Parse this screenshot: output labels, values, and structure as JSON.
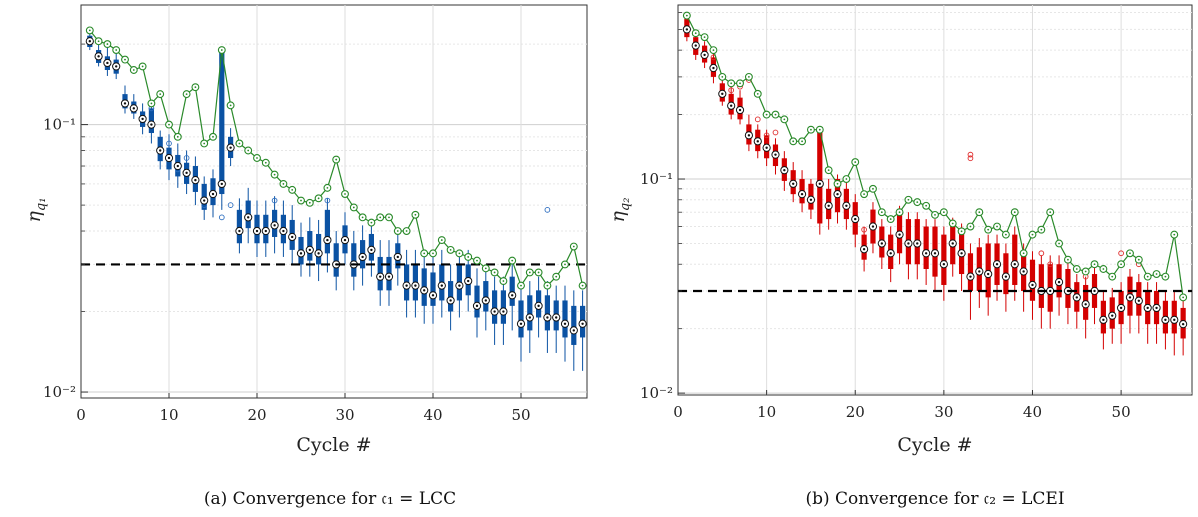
{
  "figure": {
    "captions": [
      "(a) Convergence for 𝔠₁ = LCC",
      "(b) Convergence for 𝔠₂ = LCEI"
    ]
  },
  "chart_data": [
    {
      "type": "box",
      "title": "",
      "xlabel": "Cycle #",
      "ylabel": "η_{q1}",
      "ylabel_main": "η",
      "ylabel_sub": "q₁",
      "x_ticks": [
        0,
        10,
        20,
        30,
        40,
        50
      ],
      "y_ticks": [
        "10⁻²",
        "10⁻¹"
      ],
      "y_tick_values": [
        0.01,
        0.1
      ],
      "xlim": [
        0,
        57.5
      ],
      "ylim": [
        0.0095,
        0.28
      ],
      "yscale": "log",
      "grid": true,
      "colors": {
        "box": "#0b52a3",
        "max_line": "#2a8a2a",
        "threshold": "#000000",
        "outlier": "#2f6fc0"
      },
      "threshold": 0.03,
      "cycles": [
        1,
        2,
        3,
        4,
        5,
        6,
        7,
        8,
        9,
        10,
        11,
        12,
        13,
        14,
        15,
        16,
        17,
        18,
        19,
        20,
        21,
        22,
        23,
        24,
        25,
        26,
        27,
        28,
        29,
        30,
        31,
        32,
        33,
        34,
        35,
        36,
        37,
        38,
        39,
        40,
        41,
        42,
        43,
        44,
        45,
        46,
        47,
        48,
        49,
        50,
        51,
        52,
        53,
        54,
        55,
        56,
        57
      ],
      "max": [
        0.225,
        0.205,
        0.2,
        0.19,
        0.175,
        0.16,
        0.165,
        0.12,
        0.13,
        0.1,
        0.09,
        0.13,
        0.138,
        0.085,
        0.09,
        0.19,
        0.118,
        0.085,
        0.08,
        0.075,
        0.072,
        0.065,
        0.06,
        0.057,
        0.052,
        0.051,
        0.053,
        0.058,
        0.074,
        0.055,
        0.049,
        0.045,
        0.043,
        0.045,
        0.045,
        0.04,
        0.04,
        0.046,
        0.033,
        0.033,
        0.037,
        0.034,
        0.033,
        0.032,
        0.031,
        0.029,
        0.028,
        0.026,
        0.031,
        0.025,
        0.028,
        0.028,
        0.025,
        0.027,
        0.03,
        0.035,
        0.025
      ],
      "median": [
        0.205,
        0.18,
        0.17,
        0.165,
        0.12,
        0.115,
        0.105,
        0.1,
        0.08,
        0.075,
        0.07,
        0.066,
        0.062,
        0.052,
        0.055,
        0.06,
        0.082,
        0.04,
        0.045,
        0.04,
        0.04,
        0.042,
        0.04,
        0.038,
        0.033,
        0.034,
        0.033,
        0.037,
        0.03,
        0.037,
        0.03,
        0.032,
        0.034,
        0.027,
        0.027,
        0.032,
        0.025,
        0.025,
        0.024,
        0.023,
        0.025,
        0.022,
        0.025,
        0.026,
        0.021,
        0.022,
        0.02,
        0.02,
        0.023,
        0.018,
        0.019,
        0.021,
        0.019,
        0.019,
        0.018,
        0.017,
        0.018
      ],
      "q1": [
        0.195,
        0.17,
        0.16,
        0.155,
        0.115,
        0.11,
        0.098,
        0.093,
        0.073,
        0.068,
        0.064,
        0.06,
        0.056,
        0.048,
        0.05,
        0.055,
        0.075,
        0.036,
        0.041,
        0.036,
        0.036,
        0.038,
        0.036,
        0.034,
        0.03,
        0.031,
        0.03,
        0.033,
        0.027,
        0.033,
        0.027,
        0.029,
        0.031,
        0.024,
        0.024,
        0.029,
        0.022,
        0.022,
        0.021,
        0.021,
        0.022,
        0.02,
        0.022,
        0.023,
        0.019,
        0.02,
        0.018,
        0.018,
        0.021,
        0.016,
        0.017,
        0.019,
        0.017,
        0.017,
        0.016,
        0.015,
        0.016
      ],
      "q3": [
        0.215,
        0.19,
        0.18,
        0.175,
        0.13,
        0.122,
        0.112,
        0.115,
        0.09,
        0.082,
        0.077,
        0.072,
        0.07,
        0.06,
        0.063,
        0.19,
        0.09,
        0.048,
        0.052,
        0.046,
        0.046,
        0.048,
        0.046,
        0.044,
        0.038,
        0.04,
        0.039,
        0.048,
        0.036,
        0.042,
        0.036,
        0.037,
        0.039,
        0.032,
        0.032,
        0.036,
        0.03,
        0.03,
        0.029,
        0.028,
        0.03,
        0.026,
        0.03,
        0.03,
        0.025,
        0.026,
        0.024,
        0.024,
        0.027,
        0.022,
        0.023,
        0.024,
        0.023,
        0.022,
        0.022,
        0.021,
        0.021
      ],
      "low": [
        0.19,
        0.165,
        0.152,
        0.148,
        0.11,
        0.105,
        0.092,
        0.085,
        0.068,
        0.062,
        0.058,
        0.055,
        0.05,
        0.044,
        0.045,
        0.048,
        0.07,
        0.033,
        0.036,
        0.032,
        0.032,
        0.033,
        0.032,
        0.03,
        0.027,
        0.027,
        0.026,
        0.028,
        0.024,
        0.03,
        0.024,
        0.025,
        0.027,
        0.021,
        0.021,
        0.025,
        0.019,
        0.019,
        0.018,
        0.018,
        0.019,
        0.017,
        0.019,
        0.02,
        0.016,
        0.017,
        0.015,
        0.015,
        0.017,
        0.013,
        0.014,
        0.016,
        0.014,
        0.014,
        0.013,
        0.012,
        0.012
      ],
      "high": [
        0.222,
        0.2,
        0.195,
        0.185,
        0.14,
        0.13,
        0.12,
        0.122,
        0.095,
        0.092,
        0.085,
        0.08,
        0.076,
        0.064,
        0.068,
        0.19,
        0.097,
        0.053,
        0.058,
        0.052,
        0.052,
        0.054,
        0.052,
        0.05,
        0.043,
        0.045,
        0.044,
        0.053,
        0.04,
        0.047,
        0.04,
        0.042,
        0.044,
        0.037,
        0.037,
        0.04,
        0.034,
        0.034,
        0.033,
        0.032,
        0.034,
        0.03,
        0.033,
        0.034,
        0.029,
        0.03,
        0.027,
        0.027,
        0.03,
        0.025,
        0.026,
        0.027,
        0.026,
        0.025,
        0.025,
        0.024,
        0.024
      ],
      "outliers": [
        [
          8,
          0.115
        ],
        [
          10,
          0.085
        ],
        [
          11,
          0.068
        ],
        [
          12,
          0.075
        ],
        [
          14,
          0.05
        ],
        [
          16,
          0.045
        ],
        [
          17,
          0.05
        ],
        [
          22,
          0.052
        ],
        [
          28,
          0.052
        ],
        [
          53,
          0.048
        ]
      ]
    },
    {
      "type": "box",
      "title": "",
      "xlabel": "Cycle #",
      "ylabel": "η_{q2}",
      "ylabel_main": "η",
      "ylabel_sub": "q₂",
      "x_ticks": [
        0,
        10,
        20,
        30,
        40,
        50
      ],
      "y_ticks": [
        "10⁻²",
        "10⁻¹"
      ],
      "y_tick_values": [
        0.01,
        0.1
      ],
      "xlim": [
        0,
        58
      ],
      "ylim": [
        0.0098,
        0.65
      ],
      "yscale": "log",
      "grid": true,
      "colors": {
        "box": "#d40000",
        "max_line": "#2a8a2a",
        "threshold": "#000000",
        "outlier": "#e03030"
      },
      "threshold": 0.03,
      "cycles": [
        1,
        2,
        3,
        4,
        5,
        6,
        7,
        8,
        9,
        10,
        11,
        12,
        13,
        14,
        15,
        16,
        17,
        18,
        19,
        20,
        21,
        22,
        23,
        24,
        25,
        26,
        27,
        28,
        29,
        30,
        31,
        32,
        33,
        34,
        35,
        36,
        37,
        38,
        39,
        40,
        41,
        42,
        43,
        44,
        45,
        46,
        47,
        48,
        49,
        50,
        51,
        52,
        53,
        54,
        55,
        56,
        57
      ],
      "max": [
        0.58,
        0.48,
        0.46,
        0.4,
        0.3,
        0.28,
        0.28,
        0.3,
        0.25,
        0.2,
        0.2,
        0.19,
        0.15,
        0.15,
        0.17,
        0.17,
        0.11,
        0.095,
        0.1,
        0.12,
        0.085,
        0.09,
        0.07,
        0.065,
        0.07,
        0.08,
        0.078,
        0.075,
        0.068,
        0.07,
        0.062,
        0.057,
        0.06,
        0.07,
        0.058,
        0.06,
        0.055,
        0.07,
        0.045,
        0.055,
        0.058,
        0.07,
        0.05,
        0.042,
        0.038,
        0.037,
        0.04,
        0.038,
        0.035,
        0.04,
        0.045,
        0.042,
        0.035,
        0.036,
        0.035,
        0.055,
        0.028
      ],
      "median": [
        0.5,
        0.42,
        0.38,
        0.33,
        0.25,
        0.22,
        0.21,
        0.16,
        0.15,
        0.14,
        0.13,
        0.11,
        0.095,
        0.085,
        0.08,
        0.095,
        0.075,
        0.085,
        0.075,
        0.065,
        0.047,
        0.06,
        0.05,
        0.045,
        0.055,
        0.05,
        0.05,
        0.045,
        0.045,
        0.04,
        0.05,
        0.045,
        0.035,
        0.037,
        0.036,
        0.04,
        0.035,
        0.04,
        0.037,
        0.032,
        0.03,
        0.03,
        0.033,
        0.03,
        0.028,
        0.026,
        0.03,
        0.022,
        0.023,
        0.025,
        0.028,
        0.027,
        0.025,
        0.025,
        0.022,
        0.022,
        0.021
      ],
      "q1": [
        0.46,
        0.38,
        0.35,
        0.3,
        0.23,
        0.2,
        0.19,
        0.145,
        0.135,
        0.125,
        0.115,
        0.098,
        0.085,
        0.077,
        0.072,
        0.062,
        0.065,
        0.07,
        0.065,
        0.055,
        0.042,
        0.05,
        0.043,
        0.038,
        0.045,
        0.04,
        0.04,
        0.038,
        0.035,
        0.032,
        0.04,
        0.036,
        0.03,
        0.03,
        0.028,
        0.032,
        0.029,
        0.032,
        0.03,
        0.027,
        0.025,
        0.024,
        0.028,
        0.025,
        0.024,
        0.022,
        0.025,
        0.019,
        0.02,
        0.021,
        0.023,
        0.023,
        0.021,
        0.021,
        0.019,
        0.019,
        0.018
      ],
      "q3": [
        0.56,
        0.46,
        0.42,
        0.37,
        0.28,
        0.25,
        0.24,
        0.18,
        0.17,
        0.16,
        0.145,
        0.125,
        0.11,
        0.1,
        0.095,
        0.17,
        0.09,
        0.1,
        0.09,
        0.078,
        0.055,
        0.072,
        0.06,
        0.055,
        0.07,
        0.065,
        0.065,
        0.06,
        0.06,
        0.055,
        0.062,
        0.058,
        0.045,
        0.048,
        0.05,
        0.05,
        0.045,
        0.055,
        0.045,
        0.042,
        0.04,
        0.04,
        0.04,
        0.038,
        0.033,
        0.032,
        0.036,
        0.027,
        0.028,
        0.03,
        0.035,
        0.033,
        0.03,
        0.03,
        0.027,
        0.027,
        0.025
      ],
      "low": [
        0.44,
        0.36,
        0.33,
        0.28,
        0.22,
        0.19,
        0.18,
        0.135,
        0.125,
        0.115,
        0.105,
        0.088,
        0.078,
        0.07,
        0.065,
        0.055,
        0.058,
        0.062,
        0.058,
        0.048,
        0.037,
        0.045,
        0.038,
        0.033,
        0.04,
        0.034,
        0.034,
        0.032,
        0.03,
        0.027,
        0.035,
        0.03,
        0.022,
        0.025,
        0.023,
        0.027,
        0.024,
        0.027,
        0.024,
        0.022,
        0.02,
        0.02,
        0.023,
        0.021,
        0.02,
        0.018,
        0.021,
        0.016,
        0.017,
        0.017,
        0.019,
        0.019,
        0.017,
        0.017,
        0.016,
        0.015,
        0.015
      ],
      "high": [
        0.58,
        0.48,
        0.44,
        0.39,
        0.3,
        0.27,
        0.26,
        0.2,
        0.18,
        0.17,
        0.155,
        0.135,
        0.12,
        0.11,
        0.1,
        0.17,
        0.1,
        0.105,
        0.098,
        0.085,
        0.06,
        0.078,
        0.065,
        0.06,
        0.075,
        0.07,
        0.07,
        0.065,
        0.065,
        0.06,
        0.066,
        0.062,
        0.05,
        0.053,
        0.055,
        0.055,
        0.05,
        0.06,
        0.05,
        0.046,
        0.044,
        0.044,
        0.044,
        0.042,
        0.036,
        0.035,
        0.039,
        0.03,
        0.031,
        0.033,
        0.038,
        0.036,
        0.033,
        0.033,
        0.03,
        0.03,
        0.028
      ],
      "outliers": [
        [
          4,
          0.37
        ],
        [
          6,
          0.26
        ],
        [
          7,
          0.27
        ],
        [
          8,
          0.29
        ],
        [
          9,
          0.19
        ],
        [
          10,
          0.16
        ],
        [
          11,
          0.165
        ],
        [
          21,
          0.058
        ],
        [
          22,
          0.09
        ],
        [
          33,
          0.13
        ],
        [
          33,
          0.125
        ],
        [
          41,
          0.045
        ],
        [
          42,
          0.04
        ],
        [
          46,
          0.035
        ],
        [
          50,
          0.045
        ],
        [
          52,
          0.04
        ],
        [
          56,
          0.055
        ]
      ]
    }
  ]
}
